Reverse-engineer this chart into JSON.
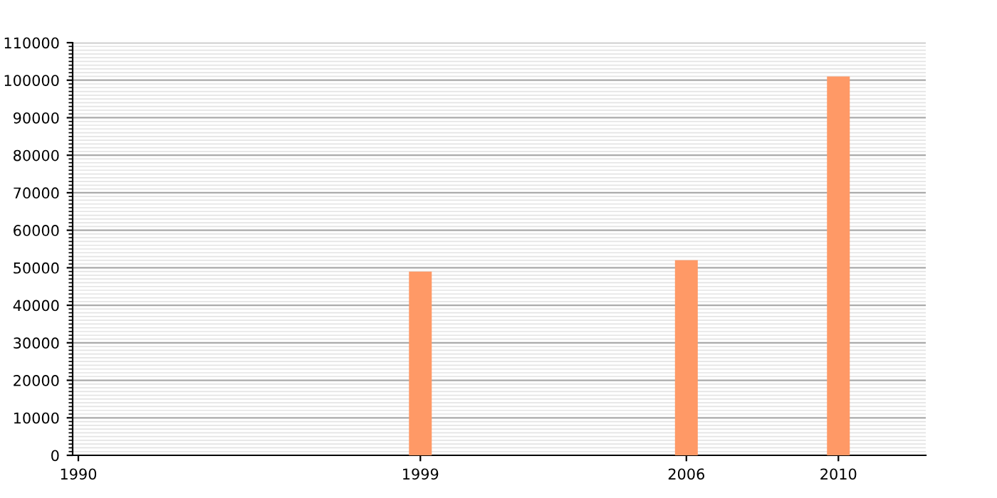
{
  "chart_data": {
    "type": "bar",
    "x": [
      1999,
      2006,
      2010
    ],
    "values": [
      49000,
      52000,
      101000
    ],
    "color": "#ff9966",
    "xlim": [
      1989.85,
      2012.3
    ],
    "xticks": [
      1990,
      1999,
      2006,
      2010
    ],
    "ylim": [
      0,
      110000
    ],
    "yticks": [
      0,
      10000,
      20000,
      30000,
      40000,
      50000,
      60000,
      70000,
      80000,
      90000,
      100000,
      110000
    ],
    "grid": "y"
  }
}
